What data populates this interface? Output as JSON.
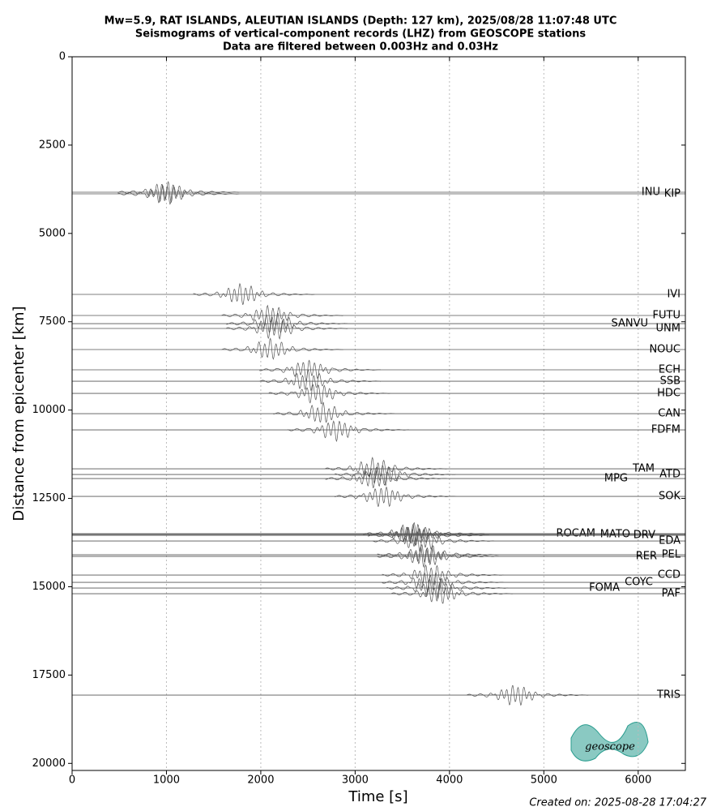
{
  "chart_data": {
    "type": "seismogram",
    "title": "Mw=5.9, RAT ISLANDS, ALEUTIAN ISLANDS (Depth: 127 km), 2025/08/28 11:07:48 UTC",
    "subtitle": "Seismograms of vertical-component records (LHZ) from GEOSCOPE stations",
    "note": "Data are filtered between 0.003Hz and 0.03Hz",
    "x_label": "Time [s]",
    "y_label": "Distance from epicenter [km]",
    "footer": "Created on: 2025-08-28 17:04:27",
    "logo_text": "geoscope",
    "color": "#555555",
    "xlim": [
      0,
      6500
    ],
    "xticks": [
      0,
      1000,
      2000,
      3000,
      4000,
      5000,
      6000
    ],
    "ylim": [
      20200,
      0
    ],
    "yticks": [
      0,
      2500,
      5000,
      7500,
      10000,
      12500,
      15000,
      17500,
      20000
    ],
    "grid": true,
    "stations": [
      {
        "name": "INU",
        "distance": 3834,
        "peak_time": 1000
      },
      {
        "name": "KIP",
        "distance": 3880,
        "peak_time": 1000
      },
      {
        "name": "IVI",
        "distance": 6726,
        "peak_time": 1800
      },
      {
        "name": "FUTU",
        "distance": 7323,
        "peak_time": 2100
      },
      {
        "name": "SANVU",
        "distance": 7553,
        "peak_time": 2150
      },
      {
        "name": "UNM",
        "distance": 7690,
        "peak_time": 2150
      },
      {
        "name": "NOUC",
        "distance": 8287,
        "peak_time": 2100
      },
      {
        "name": "ECH",
        "distance": 8861,
        "peak_time": 2500
      },
      {
        "name": "SSB",
        "distance": 9183,
        "peak_time": 2500
      },
      {
        "name": "HDC",
        "distance": 9527,
        "peak_time": 2600
      },
      {
        "name": "CAN",
        "distance": 10101,
        "peak_time": 2650
      },
      {
        "name": "FDFM",
        "distance": 10560,
        "peak_time": 2800
      },
      {
        "name": "TAM",
        "distance": 11662,
        "peak_time": 3200
      },
      {
        "name": "ATD",
        "distance": 11823,
        "peak_time": 3300
      },
      {
        "name": "MPG",
        "distance": 11938,
        "peak_time": 3200
      },
      {
        "name": "SOK",
        "distance": 12443,
        "peak_time": 3300
      },
      {
        "name": "ROCAM",
        "distance": 13499,
        "peak_time": 3600
      },
      {
        "name": "MATO",
        "distance": 13520,
        "peak_time": 3600
      },
      {
        "name": "DRV",
        "distance": 13545,
        "peak_time": 3650
      },
      {
        "name": "EDA",
        "distance": 13705,
        "peak_time": 3700
      },
      {
        "name": "PEL",
        "distance": 14096,
        "peak_time": 3750
      },
      {
        "name": "RER",
        "distance": 14141,
        "peak_time": 3750
      },
      {
        "name": "CCD",
        "distance": 14669,
        "peak_time": 3800
      },
      {
        "name": "COYC",
        "distance": 14876,
        "peak_time": 3800
      },
      {
        "name": "FOMA",
        "distance": 15037,
        "peak_time": 3850
      },
      {
        "name": "PAF",
        "distance": 15197,
        "peak_time": 3900
      },
      {
        "name": "TRIS",
        "distance": 18067,
        "peak_time": 4700
      }
    ]
  }
}
